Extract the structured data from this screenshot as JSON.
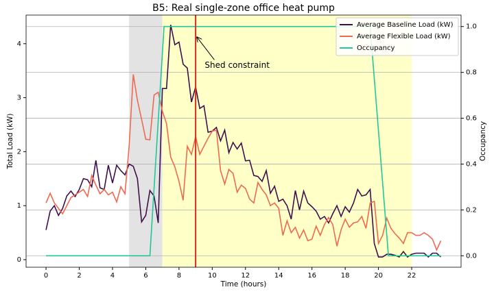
{
  "chart_data": {
    "type": "line",
    "title": "B5: Real single-zone office heat pump",
    "x_label": "Time (hours)",
    "y_label": "Total Load (kW)",
    "y2_label": "Occupancy",
    "xlim": [
      -1.2,
      24.97
    ],
    "xticks": [
      0,
      2,
      4,
      6,
      8,
      10,
      12,
      14,
      16,
      18,
      20,
      22
    ],
    "ylim": [
      -0.14,
      4.53
    ],
    "yticks": [
      0,
      1,
      2,
      3,
      4
    ],
    "y2lim": [
      -0.05,
      1.05
    ],
    "y2ticks": [
      {
        "value": 0,
        "label": "0.0"
      },
      {
        "value": 0.2,
        "label": "0.2"
      },
      {
        "value": 0.4,
        "label": "0.4"
      },
      {
        "value": 0.6,
        "label": "0.6"
      },
      {
        "value": 0.8,
        "label": "0.8"
      },
      {
        "value": 1,
        "label": "1.0"
      }
    ],
    "grid": "y2",
    "legend": "upper-right",
    "shaded_regions": [
      {
        "xlim": [
          5,
          7
        ],
        "color": "#e3e3e3"
      },
      {
        "xlim": [
          7,
          22
        ],
        "color": "#ffffc8"
      }
    ],
    "vline": {
      "x": 9,
      "color": "#d62d1c"
    },
    "annotation": {
      "text": "Shed constraint",
      "xy": [
        9,
        4.12
      ],
      "xytext": [
        9.55,
        3.6
      ]
    },
    "series": [
      {
        "name": "Average Baseline Load (kW)",
        "color": "#3d0e4c",
        "x": [
          0,
          0.25,
          0.5,
          0.75,
          1,
          1.25,
          1.5,
          1.75,
          2,
          2.25,
          2.5,
          2.75,
          3,
          3.25,
          3.5,
          3.75,
          4,
          4.25,
          4.5,
          4.75,
          5,
          5.25,
          5.5,
          5.75,
          6,
          6.25,
          6.5,
          6.75,
          7,
          7.25,
          7.5,
          7.75,
          8,
          8.25,
          8.5,
          8.75,
          9,
          9.25,
          9.5,
          9.75,
          10,
          10.25,
          10.5,
          10.75,
          11,
          11.25,
          11.5,
          11.75,
          12,
          12.25,
          12.5,
          12.75,
          13,
          13.25,
          13.5,
          13.75,
          14,
          14.25,
          14.5,
          14.75,
          15,
          15.25,
          15.5,
          15.75,
          16,
          16.25,
          16.5,
          16.75,
          17,
          17.25,
          17.5,
          17.75,
          18,
          18.25,
          18.5,
          18.75,
          19,
          19.25,
          19.5,
          19.75,
          20,
          20.25,
          20.5,
          20.75,
          21,
          21.25,
          21.5,
          21.75,
          22,
          22.25,
          22.5,
          22.75,
          23,
          23.25,
          23.5,
          23.75
        ],
        "values": [
          0.55,
          0.9,
          1.0,
          0.82,
          0.95,
          1.18,
          1.27,
          1.17,
          1.3,
          1.5,
          1.48,
          1.35,
          1.84,
          1.33,
          1.3,
          1.75,
          1.42,
          1.75,
          1.65,
          1.57,
          1.77,
          1.73,
          1.5,
          0.7,
          0.82,
          1.28,
          1.18,
          0.68,
          3.17,
          3.17,
          4.35,
          3.98,
          4.03,
          3.62,
          3.55,
          2.92,
          3.2,
          2.8,
          2.85,
          2.36,
          2.38,
          2.45,
          2.2,
          2.4,
          1.98,
          2.17,
          2.05,
          2.16,
          1.83,
          1.84,
          1.56,
          1.54,
          1.45,
          1.65,
          1.23,
          1.36,
          1.08,
          1.12,
          1.0,
          0.75,
          1.28,
          0.92,
          1.27,
          1.05,
          0.98,
          0.9,
          0.75,
          0.8,
          0.68,
          0.85,
          1.0,
          0.8,
          0.98,
          0.88,
          1.05,
          1.3,
          1.18,
          1.2,
          1.3,
          0.3,
          0.05,
          0.05,
          0.1,
          0.1,
          0.08,
          0.05,
          0.15,
          0.05,
          0.1,
          0.12,
          0.12,
          0.12,
          0.05,
          0.12,
          0.12,
          0.05
        ]
      },
      {
        "name": "Average Flexible Load (kW)",
        "color": "#f0684f",
        "x": [
          0,
          0.25,
          0.5,
          0.75,
          1,
          1.25,
          1.5,
          1.75,
          2,
          2.25,
          2.5,
          2.75,
          3,
          3.25,
          3.5,
          3.75,
          4,
          4.25,
          4.5,
          4.75,
          5,
          5.25,
          5.5,
          5.75,
          6,
          6.25,
          6.5,
          6.75,
          7,
          7.25,
          7.5,
          7.75,
          8,
          8.25,
          8.5,
          8.75,
          9,
          9.25,
          9.5,
          9.75,
          10,
          10.25,
          10.5,
          10.75,
          11,
          11.25,
          11.5,
          11.75,
          12,
          12.25,
          12.5,
          12.75,
          13,
          13.25,
          13.5,
          13.75,
          14,
          14.25,
          14.5,
          14.75,
          15,
          15.25,
          15.5,
          15.75,
          16,
          16.25,
          16.5,
          16.75,
          17,
          17.25,
          17.5,
          17.75,
          18,
          18.25,
          18.5,
          18.75,
          19,
          19.25,
          19.5,
          19.75,
          20,
          20.25,
          20.5,
          20.75,
          21,
          21.25,
          21.5,
          21.75,
          22,
          22.25,
          22.5,
          22.75,
          23,
          23.25,
          23.5,
          23.75
        ],
        "values": [
          1.05,
          1.23,
          1.05,
          0.95,
          0.85,
          1.0,
          1.15,
          1.2,
          1.25,
          1.3,
          1.17,
          1.56,
          1.38,
          1.22,
          1.3,
          1.2,
          1.25,
          1.07,
          1.35,
          1.22,
          2.1,
          3.43,
          2.95,
          2.6,
          2.23,
          2.22,
          3.05,
          3.1,
          2.75,
          2.52,
          1.9,
          1.72,
          1.45,
          1.1,
          2.1,
          1.95,
          2.28,
          1.95,
          2.1,
          2.25,
          2.38,
          2.4,
          1.65,
          1.4,
          1.67,
          1.6,
          1.25,
          1.38,
          1.32,
          1.12,
          1.05,
          1.43,
          1.3,
          1.2,
          1.0,
          1.05,
          0.95,
          0.45,
          0.72,
          0.5,
          0.6,
          0.4,
          0.55,
          0.35,
          0.38,
          0.62,
          0.45,
          0.65,
          0.78,
          0.65,
          0.25,
          0.55,
          0.75,
          0.6,
          0.68,
          0.7,
          0.8,
          0.58,
          1.05,
          1.08,
          0.3,
          0.45,
          0.77,
          0.58,
          0.48,
          0.4,
          0.3,
          0.5,
          0.5,
          0.45,
          0.45,
          0.5,
          0.45,
          0.38,
          0.18,
          0.35
        ]
      },
      {
        "name": "Occupancy",
        "color": "#1fc79b",
        "axis": "y2",
        "x": [
          0,
          6.25,
          7.1,
          19.5,
          20.6,
          23.75
        ],
        "values": [
          0,
          0,
          1,
          1,
          0,
          0
        ]
      }
    ]
  }
}
